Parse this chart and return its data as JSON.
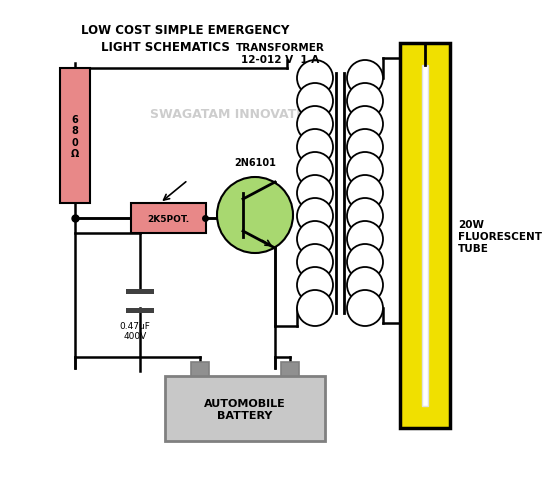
{
  "title_line1": "LOW COST SIMPLE EMERGENCY",
  "title_line2": "LIGHT SCHEMATICS",
  "watermark": "SWAGATAM INNOVATIONS",
  "transformer_label": "TRANSFORMER\n12-012 V  1 A",
  "transistor_label": "2N6101",
  "resistor_label": "6\n8\n0\nΩ",
  "pot_label": "2K5POT.",
  "cap_label": "0.47uF\n400V",
  "battery_label": "AUTOMOBILE\nBATTERY",
  "tube_label": "20W\nFLUORESCENT\nTUBE",
  "bg_color": "#ffffff",
  "resistor_color": "#e88888",
  "pot_color": "#e88888",
  "transistor_color": "#a8d870",
  "battery_color": "#c8c8c8",
  "tube_outer_color": "#f0e000",
  "tube_inner_color": "#ffffff",
  "wire_color": "#000000",
  "coil_color": "#000000",
  "watermark_color": "#c8c8c8"
}
